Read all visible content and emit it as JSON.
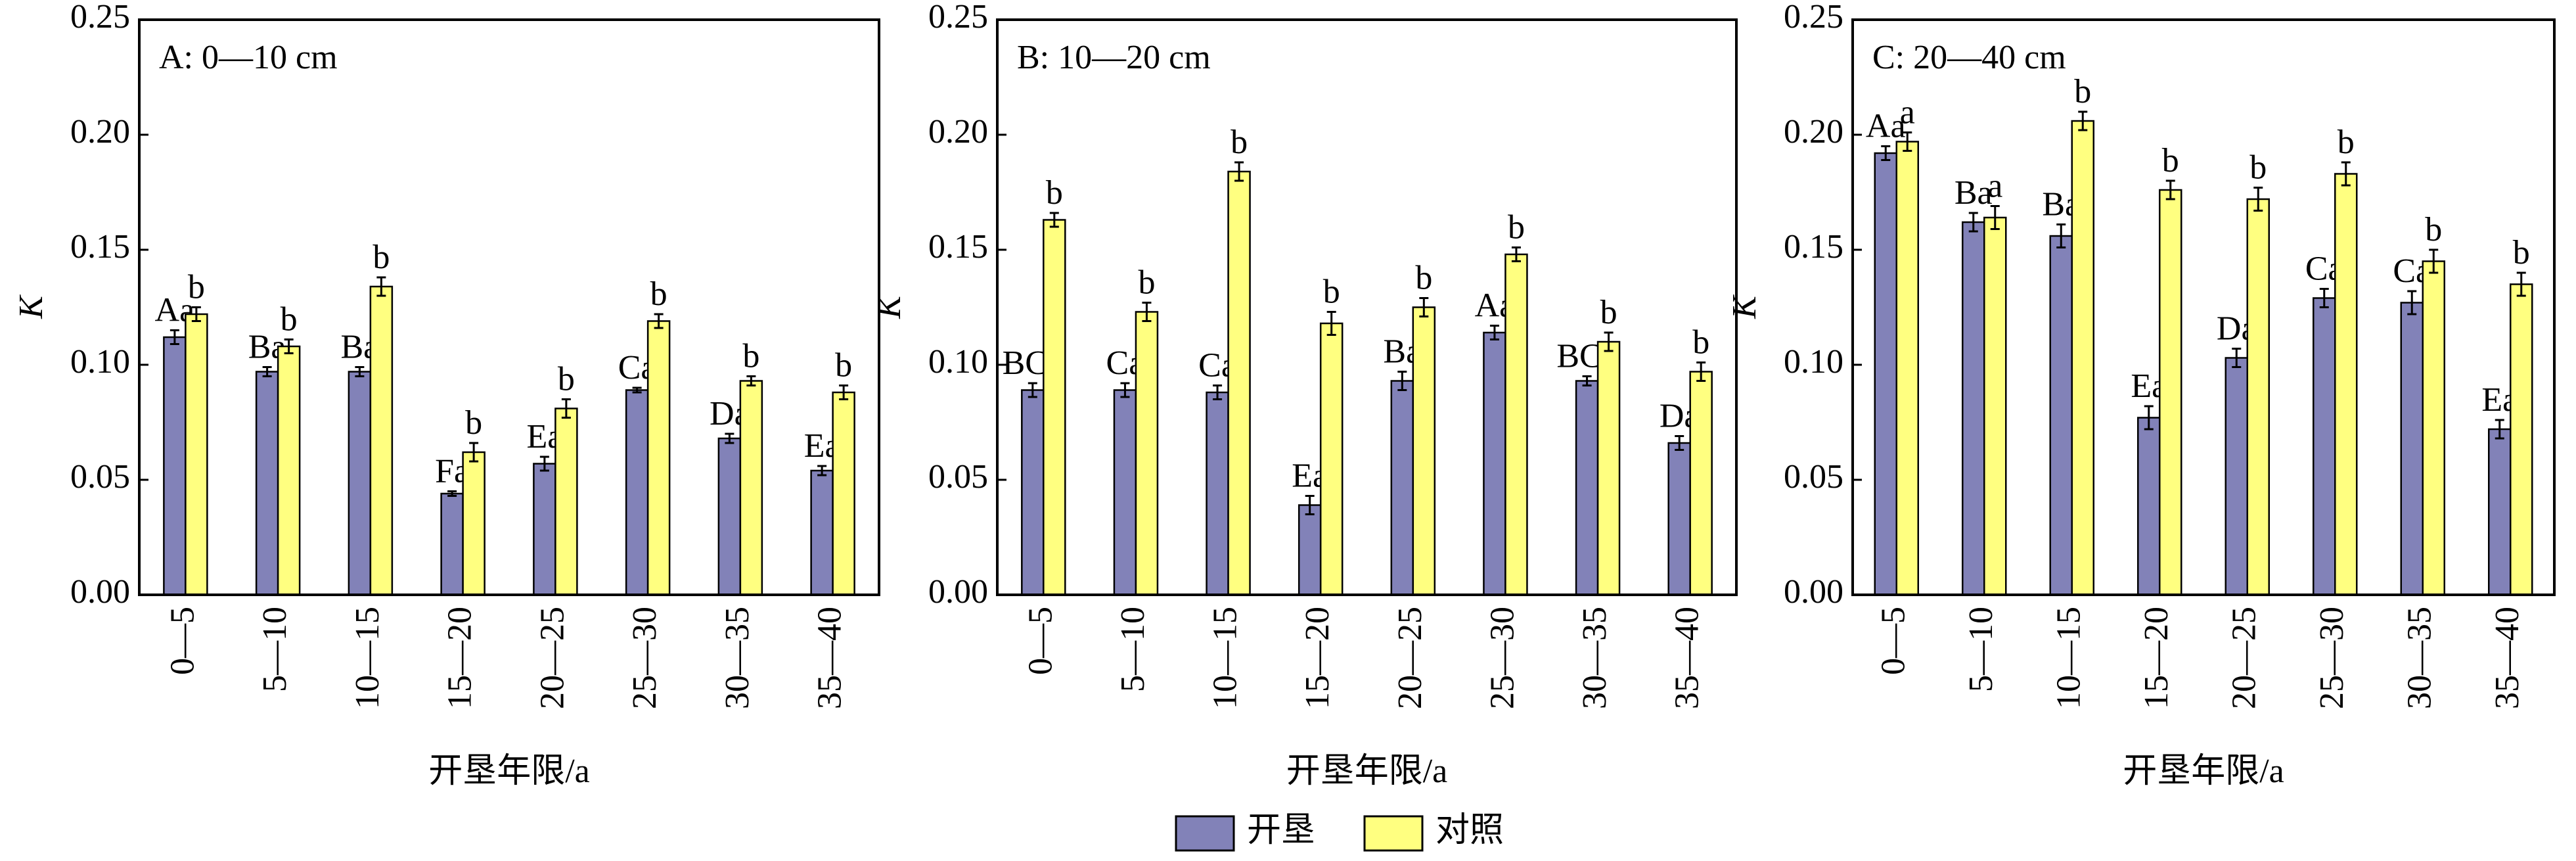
{
  "chart_data": [
    {
      "type": "bar",
      "title": "A: 0—10 cm",
      "xlabel": "开垦年限/a",
      "ylabel": "K",
      "categories": [
        "0—5",
        "5—10",
        "10—15",
        "15—20",
        "20—25",
        "25—30",
        "30—35",
        "35—40"
      ],
      "series": [
        {
          "name": "开垦",
          "color": "#8282b8",
          "values": [
            0.112,
            0.097,
            0.097,
            0.044,
            0.057,
            0.089,
            0.068,
            0.054
          ],
          "errors": [
            0.003,
            0.002,
            0.002,
            0.001,
            0.003,
            0.001,
            0.002,
            0.002
          ],
          "labels": [
            "Aa",
            "Ba",
            "Ba",
            "Fa",
            "Ea",
            "Ca",
            "Da",
            "Ea"
          ]
        },
        {
          "name": "对照",
          "color": "#ffff80",
          "values": [
            0.122,
            0.108,
            0.134,
            0.062,
            0.081,
            0.119,
            0.093,
            0.088
          ],
          "errors": [
            0.003,
            0.003,
            0.004,
            0.004,
            0.004,
            0.003,
            0.002,
            0.003
          ],
          "labels": [
            "b",
            "b",
            "b",
            "b",
            "b",
            "b",
            "b",
            "b"
          ]
        }
      ],
      "ylim": [
        0,
        0.25
      ],
      "yticks": [
        {
          "value": 0,
          "label": "0.00"
        },
        {
          "value": 0.05,
          "label": "0.05"
        },
        {
          "value": 0.1,
          "label": "0.10"
        },
        {
          "value": 0.15,
          "label": "0.15"
        },
        {
          "value": 0.2,
          "label": "0.20"
        },
        {
          "value": 0.25,
          "label": "0.25"
        }
      ]
    },
    {
      "type": "bar",
      "title": "B: 10—20 cm",
      "xlabel": "开垦年限/a",
      "ylabel": "K",
      "categories": [
        "0—5",
        "5—10",
        "10—15",
        "15—20",
        "20—25",
        "25—30",
        "30—35",
        "35—40"
      ],
      "series": [
        {
          "name": "开垦",
          "color": "#8282b8",
          "values": [
            0.089,
            0.089,
            0.088,
            0.039,
            0.093,
            0.114,
            0.093,
            0.066
          ],
          "errors": [
            0.003,
            0.003,
            0.003,
            0.004,
            0.004,
            0.003,
            0.002,
            0.003
          ],
          "labels": [
            "BCa",
            "Ca",
            "Ca",
            "Ea",
            "Ba",
            "Aa",
            "BCa",
            "Da"
          ]
        },
        {
          "name": "对照",
          "color": "#ffff80",
          "values": [
            0.163,
            0.123,
            0.184,
            0.118,
            0.125,
            0.148,
            0.11,
            0.097
          ],
          "errors": [
            0.003,
            0.004,
            0.004,
            0.005,
            0.004,
            0.003,
            0.004,
            0.004
          ],
          "labels": [
            "b",
            "b",
            "b",
            "b",
            "b",
            "b",
            "b",
            "b"
          ]
        }
      ],
      "ylim": [
        0,
        0.25
      ],
      "yticks": [
        {
          "value": 0,
          "label": "0.00"
        },
        {
          "value": 0.05,
          "label": "0.05"
        },
        {
          "value": 0.1,
          "label": "0.10"
        },
        {
          "value": 0.15,
          "label": "0.15"
        },
        {
          "value": 0.2,
          "label": "0.20"
        },
        {
          "value": 0.25,
          "label": "0.25"
        }
      ]
    },
    {
      "type": "bar",
      "title": "C: 20—40 cm",
      "xlabel": "开垦年限/a",
      "ylabel": "K",
      "categories": [
        "0—5",
        "5—10",
        "10—15",
        "15—20",
        "20—25",
        "25—30",
        "30—35",
        "35—40"
      ],
      "series": [
        {
          "name": "开垦",
          "color": "#8282b8",
          "values": [
            0.192,
            0.162,
            0.156,
            0.077,
            0.103,
            0.129,
            0.127,
            0.072
          ],
          "errors": [
            0.003,
            0.004,
            0.005,
            0.005,
            0.004,
            0.004,
            0.005,
            0.004
          ],
          "labels": [
            "Aa",
            "Ba",
            "Ba",
            "Ea",
            "Da",
            "Ca",
            "Ca",
            "Ea"
          ]
        },
        {
          "name": "对照",
          "color": "#ffff80",
          "values": [
            0.197,
            0.164,
            0.206,
            0.176,
            0.172,
            0.183,
            0.145,
            0.135
          ],
          "errors": [
            0.004,
            0.005,
            0.004,
            0.004,
            0.005,
            0.005,
            0.005,
            0.005
          ],
          "labels": [
            "a",
            "a",
            "b",
            "b",
            "b",
            "b",
            "b",
            "b"
          ]
        }
      ],
      "ylim": [
        0,
        0.25
      ],
      "yticks": [
        {
          "value": 0,
          "label": "0.00"
        },
        {
          "value": 0.05,
          "label": "0.05"
        },
        {
          "value": 0.1,
          "label": "0.10"
        },
        {
          "value": 0.15,
          "label": "0.15"
        },
        {
          "value": 0.2,
          "label": "0.20"
        },
        {
          "value": 0.25,
          "label": "0.25"
        }
      ]
    }
  ]
}
